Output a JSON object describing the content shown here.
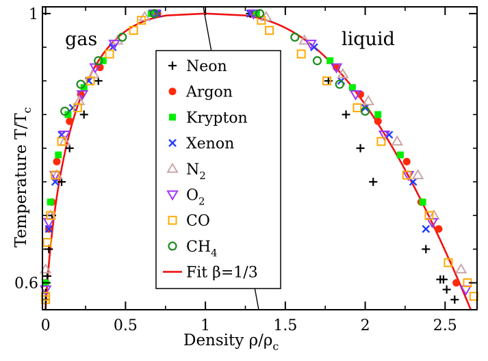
{
  "chart_data": {
    "type": "scatter",
    "title": "",
    "xlabel": "Density ρ/ρ",
    "xlabel_sub": "c",
    "ylabel": "Temperature T/T",
    "ylabel_sub": "c",
    "xlim": [
      -0.02,
      2.7
    ],
    "ylim": [
      0.56,
      1.01
    ],
    "xticks": [
      0,
      0.5,
      1,
      1.5,
      2,
      2.5
    ],
    "xtick_labels": [
      "0",
      "0.5",
      "1",
      "1.5",
      "2",
      "2.5"
    ],
    "yticks": [
      0.6,
      1
    ],
    "ytick_labels": [
      "0.6",
      "1"
    ],
    "minor_yticks": [
      0.65,
      0.7,
      0.75,
      0.8,
      0.85,
      0.9,
      0.95
    ],
    "annotations": [
      {
        "text": "gas",
        "x": 0.13,
        "y": 0.955
      },
      {
        "text": "liquid",
        "x": 1.86,
        "y": 0.955
      }
    ],
    "legend_position": "center",
    "series": [
      {
        "name": "Neon",
        "marker": "plus",
        "color": "#000000",
        "x": [
          0.68,
          1.28,
          0.33,
          1.77,
          0.24,
          1.88,
          0.15,
          1.97,
          0.1,
          2.05,
          0.04,
          2.38,
          0.02,
          2.47,
          0.01,
          2.49,
          0.0,
          2.51,
          0.0,
          2.56
        ],
        "y": [
          1.0,
          1.0,
          0.9,
          0.9,
          0.85,
          0.85,
          0.8,
          0.8,
          0.75,
          0.75,
          0.7,
          0.65,
          0.65,
          0.605,
          0.61,
          0.605,
          0.585,
          0.59,
          0.575,
          0.575
        ]
      },
      {
        "name": "Argon",
        "marker": "circle",
        "color": "#ff2a0a",
        "x": [
          0.7,
          1.3,
          0.34,
          1.82,
          0.22,
          1.97,
          0.15,
          2.08,
          0.07,
          2.26,
          0.04,
          2.35,
          0.02,
          2.46,
          0.0,
          2.57
        ],
        "y": [
          1.0,
          1.0,
          0.92,
          0.92,
          0.88,
          0.88,
          0.84,
          0.84,
          0.78,
          0.78,
          0.72,
          0.72,
          0.68,
          0.68,
          0.6,
          0.6
        ]
      },
      {
        "name": "Krypton",
        "marker": "square",
        "color": "#00ee00",
        "x": [
          0.66,
          1.32,
          0.36,
          1.78,
          0.24,
          1.92,
          0.14,
          2.08,
          0.08,
          2.22,
          0.03,
          2.36,
          0.0
        ],
        "y": [
          1.0,
          1.0,
          0.93,
          0.93,
          0.89,
          0.89,
          0.85,
          0.85,
          0.79,
          0.79,
          0.72,
          0.72,
          0.6
        ]
      },
      {
        "name": "Xenon",
        "marker": "cross",
        "color": "#1f3cff",
        "x": [
          0.7,
          1.28,
          0.42,
          1.68,
          0.27,
          1.85,
          0.17,
          2.0,
          0.1,
          2.15,
          0.06,
          2.3,
          0.02,
          2.38
        ],
        "y": [
          1.0,
          1.0,
          0.95,
          0.95,
          0.9,
          0.9,
          0.86,
          0.86,
          0.82,
          0.82,
          0.75,
          0.75,
          0.68,
          0.68
        ]
      },
      {
        "name": "N2",
        "label_main": "N",
        "label_sub": "2",
        "marker": "triangle-up",
        "color": "#c9a6a6",
        "x": [
          0.62,
          1.38,
          0.45,
          1.62,
          0.3,
          1.86,
          0.21,
          2.02,
          0.12,
          2.2,
          0.07,
          2.33,
          0.03,
          2.43,
          0.0,
          2.6
        ],
        "y": [
          0.995,
          0.995,
          0.96,
          0.96,
          0.91,
          0.91,
          0.87,
          0.87,
          0.81,
          0.81,
          0.76,
          0.76,
          0.7,
          0.7,
          0.62,
          0.62
        ]
      },
      {
        "name": "O2",
        "label_main": "O",
        "label_sub": "2",
        "marker": "triangle-down",
        "color": "#9b33ff",
        "x": [
          0.68,
          1.3,
          0.43,
          1.66,
          0.31,
          1.82,
          0.23,
          1.94,
          0.12,
          2.12,
          0.06,
          2.27,
          0.02,
          2.42,
          0.0,
          2.63
        ],
        "y": [
          1.0,
          1.0,
          0.955,
          0.955,
          0.92,
          0.92,
          0.88,
          0.88,
          0.82,
          0.82,
          0.76,
          0.76,
          0.69,
          0.69,
          0.59,
          0.59
        ]
      },
      {
        "name": "CO",
        "marker": "square-open",
        "color": "#ffaa00",
        "x": [
          0.6,
          1.35,
          0.55,
          1.4,
          0.4,
          1.6,
          0.28,
          1.76,
          0.2,
          1.95,
          0.1,
          2.1,
          0.06,
          2.26,
          0.03,
          2.4,
          0.01,
          2.52,
          0.0,
          2.64,
          0.0,
          2.68
        ],
        "y": [
          0.99,
          0.99,
          0.975,
          0.975,
          0.94,
          0.94,
          0.9,
          0.9,
          0.86,
          0.86,
          0.81,
          0.81,
          0.76,
          0.76,
          0.7,
          0.7,
          0.66,
          0.63,
          0.58,
          0.6,
          0.575,
          0.58
        ]
      },
      {
        "name": "CH4",
        "label_main": "CH",
        "label_sub": "4",
        "marker": "circle-open",
        "color": "#1c8a1c",
        "x": [
          0.68,
          1.34,
          0.48,
          1.56,
          0.33,
          1.7,
          0.22,
          1.84,
          0.12,
          2.0
        ],
        "y": [
          1.0,
          1.0,
          0.965,
          0.965,
          0.93,
          0.93,
          0.895,
          0.895,
          0.855,
          0.855
        ]
      },
      {
        "name": "Fit β=1/3",
        "marker": "line",
        "color": "#ee1111",
        "curve": {
          "rho_c": 1.0,
          "A": 0.75,
          "B": 1.75,
          "beta": 0.3333,
          "Tmin": 0.56
        }
      }
    ]
  }
}
